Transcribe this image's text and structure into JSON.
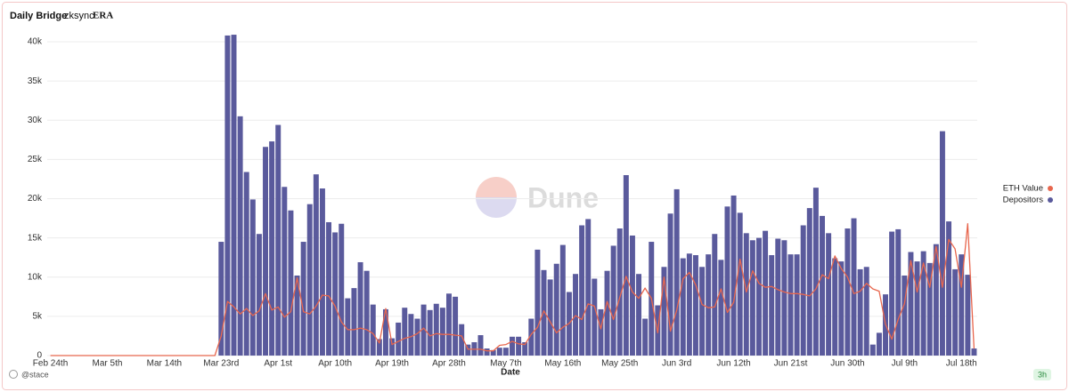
{
  "chart_data": {
    "type": "bar",
    "title": "Daily Bridge",
    "brand": {
      "name": "zksync",
      "badge": "ERA"
    },
    "xlabel": "Date",
    "watermark": "Dune",
    "author": "@stace",
    "refresh": "3h",
    "legend": "right",
    "grid": true,
    "ylim": [
      0,
      42000
    ],
    "yticks": [
      0,
      {
        "value": 5000,
        "label": "5k"
      },
      {
        "value": 10000,
        "label": "10k"
      },
      {
        "value": 15000,
        "label": "15k"
      },
      {
        "value": 20000,
        "label": "20k"
      },
      {
        "value": 25000,
        "label": "25k"
      },
      {
        "value": 30000,
        "label": "30k"
      },
      {
        "value": 35000,
        "label": "35k"
      },
      {
        "value": 40000,
        "label": "40k"
      }
    ],
    "categories": [
      "Feb 24th",
      null,
      null,
      null,
      null,
      null,
      null,
      null,
      null,
      "Mar 5th",
      null,
      null,
      null,
      null,
      null,
      null,
      null,
      null,
      "Mar 14th",
      null,
      null,
      null,
      null,
      null,
      null,
      null,
      null,
      "Mar 23rd",
      null,
      null,
      null,
      null,
      null,
      null,
      null,
      null,
      "Apr 1st",
      null,
      null,
      null,
      null,
      null,
      null,
      null,
      null,
      "Apr 10th",
      null,
      null,
      null,
      null,
      null,
      null,
      null,
      null,
      "Apr 19th",
      null,
      null,
      null,
      null,
      null,
      null,
      null,
      null,
      "Apr 28th",
      null,
      null,
      null,
      null,
      null,
      null,
      null,
      null,
      "May 7th",
      null,
      null,
      null,
      null,
      null,
      null,
      null,
      null,
      "May 16th",
      null,
      null,
      null,
      null,
      null,
      null,
      null,
      null,
      "May 25th",
      null,
      null,
      null,
      null,
      null,
      null,
      null,
      null,
      "Jun 3rd",
      null,
      null,
      null,
      null,
      null,
      null,
      null,
      null,
      "Jun 12th",
      null,
      null,
      null,
      null,
      null,
      null,
      null,
      null,
      "Jun 21st",
      null,
      null,
      null,
      null,
      null,
      null,
      null,
      null,
      "Jun 30th",
      null,
      null,
      null,
      null,
      null,
      null,
      null,
      null,
      "Jul 9th",
      null,
      null,
      null,
      null,
      null,
      null,
      null,
      null,
      "Jul 18th",
      null,
      null
    ],
    "series": [
      {
        "name": "ETH Value",
        "type": "line",
        "color": "#e8674e",
        "values": [
          0,
          0,
          0,
          0,
          0,
          0,
          0,
          0,
          0,
          0,
          0,
          0,
          0,
          0,
          0,
          0,
          0,
          0,
          0,
          0,
          0,
          0,
          0,
          0,
          0,
          0,
          0,
          2500,
          6900,
          6200,
          5300,
          6000,
          5100,
          5700,
          7900,
          5800,
          6200,
          4900,
          5600,
          9900,
          5600,
          5300,
          6300,
          7700,
          7600,
          6300,
          4300,
          3300,
          3300,
          3500,
          3300,
          2800,
          1600,
          6000,
          1400,
          1800,
          2200,
          2400,
          2800,
          3500,
          2500,
          2800,
          2700,
          2700,
          2600,
          2500,
          800,
          800,
          800,
          600,
          600,
          1300,
          1400,
          1800,
          1500,
          1400,
          2700,
          3600,
          5700,
          4300,
          2900,
          3600,
          4100,
          5100,
          4600,
          6600,
          6300,
          3400,
          6900,
          4600,
          7400,
          10100,
          8100,
          7300,
          8600,
          7300,
          2900,
          10000,
          3100,
          5800,
          9800,
          10600,
          9000,
          6500,
          6100,
          6200,
          8500,
          5500,
          6800,
          12300,
          8100,
          10800,
          9200,
          8700,
          8800,
          8400,
          8100,
          7900,
          7900,
          7800,
          7600,
          8500,
          10300,
          9800,
          12700,
          11100,
          10000,
          7900,
          8200,
          9200,
          8500,
          8200,
          4000,
          2100,
          4600,
          6600,
          12100,
          8100,
          11800,
          8700,
          13900,
          8700,
          14800,
          13600,
          8700,
          16800,
          900
        ]
      },
      {
        "name": "Depositors",
        "type": "bar",
        "color": "#5a5a9c",
        "values": [
          0,
          0,
          0,
          0,
          0,
          0,
          0,
          0,
          0,
          0,
          0,
          0,
          0,
          0,
          0,
          0,
          0,
          0,
          0,
          0,
          0,
          0,
          0,
          0,
          0,
          0,
          0,
          14500,
          40800,
          40900,
          30500,
          23400,
          19900,
          15500,
          26600,
          27300,
          29400,
          21500,
          18500,
          10200,
          14500,
          19300,
          23100,
          21300,
          17000,
          15700,
          16800,
          7300,
          8600,
          11900,
          10800,
          6500,
          2100,
          5900,
          2200,
          4200,
          6100,
          5300,
          4700,
          6500,
          5800,
          6600,
          6100,
          7900,
          7500,
          4000,
          1400,
          1700,
          2600,
          900,
          700,
          1000,
          1000,
          2400,
          2400,
          1700,
          4700,
          13500,
          10900,
          9700,
          11700,
          14100,
          8100,
          10400,
          16600,
          17400,
          9800,
          5900,
          10800,
          14000,
          16200,
          23000,
          15300,
          10400,
          4700,
          14500,
          6400,
          11300,
          18100,
          21200,
          12400,
          13000,
          12800,
          11300,
          12900,
          15500,
          12200,
          19000,
          20400,
          18200,
          15600,
          14700,
          15000,
          15900,
          12800,
          14900,
          14700,
          12900,
          12900,
          16600,
          18800,
          21400,
          17800,
          15600,
          12400,
          12000,
          16200,
          17500,
          11000,
          11300,
          1400,
          2900,
          7800,
          15800,
          16100,
          10200,
          13200,
          12000,
          13300,
          11800,
          14200,
          28600,
          17100,
          11000,
          12900,
          10300,
          900
        ]
      }
    ]
  }
}
